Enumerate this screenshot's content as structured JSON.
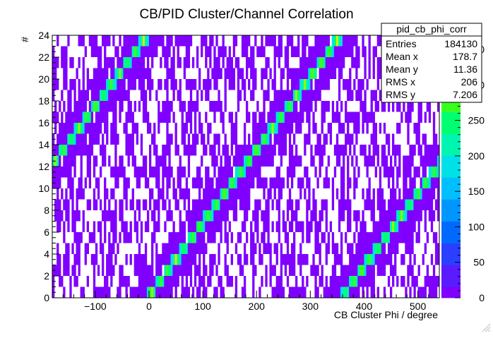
{
  "chart_data": {
    "type": "heatmap",
    "title": "CB/PID Cluster/Channel Correlation",
    "xlabel": "CB Cluster Phi / degree",
    "ylabel": "#",
    "xlim": [
      -180,
      540
    ],
    "ylim": [
      0,
      24
    ],
    "x_ticks": [
      "−100",
      "0",
      "100",
      "200",
      "300",
      "400",
      "500"
    ],
    "x_tick_values": [
      -100,
      0,
      100,
      200,
      300,
      400,
      500
    ],
    "y_ticks": [
      "0",
      "2",
      "4",
      "6",
      "8",
      "10",
      "12",
      "14",
      "16",
      "18",
      "20",
      "22",
      "24"
    ],
    "y_tick_values": [
      0,
      2,
      4,
      6,
      8,
      10,
      12,
      14,
      16,
      18,
      20,
      22,
      24
    ],
    "z_ticks": [
      "0",
      "50",
      "100",
      "150",
      "200",
      "250",
      "300",
      "350"
    ],
    "z_tick_values": [
      0,
      50,
      100,
      150,
      200,
      250,
      300,
      350
    ],
    "zlim": [
      0,
      370
    ],
    "n_channels": 24,
    "phi_per_channel": 15,
    "stats_box": {
      "name": "pid_cb_phi_corr",
      "rows": [
        {
          "label": "Entries",
          "value": "184130"
        },
        {
          "label": "Mean x",
          "value": "178.7"
        },
        {
          "label": "Mean y",
          "value": "11.36"
        },
        {
          "label": "RMS x",
          "value": "206"
        },
        {
          "label": "RMS y",
          "value": "7.206"
        }
      ]
    },
    "palette": [
      "#7f00ff",
      "#5a1bff",
      "#2a3fff",
      "#006aff",
      "#0096ff",
      "#00bfff",
      "#00e0e8",
      "#00f5b0",
      "#00ff70",
      "#38ff20",
      "#90ff00",
      "#d8f200",
      "#fff000"
    ]
  }
}
